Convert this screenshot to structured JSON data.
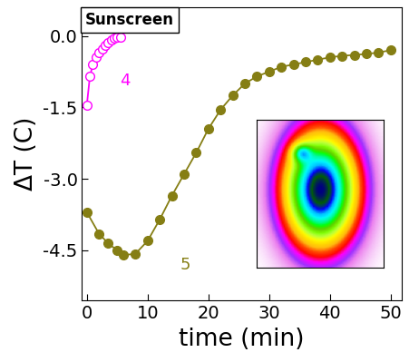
{
  "chart_data": {
    "type": "line",
    "title": "Sunscreen",
    "x_label": "time (min)",
    "y_label": "ΔT (C)",
    "xlim": [
      -0.8,
      51.8
    ],
    "ylim": [
      -5.55,
      0.6
    ],
    "xticks": [
      0,
      10,
      20,
      30,
      40,
      50
    ],
    "yticks": [
      0.0,
      -1.5,
      -3.0,
      -4.5
    ],
    "grid": false,
    "series": [
      {
        "name": "4",
        "color": "#ff00ff",
        "marker": "open_circle",
        "line_style": "solid",
        "x": [
          0,
          0.5,
          1,
          1.5,
          2,
          2.5,
          3,
          3.5,
          4,
          4.5,
          5,
          5.5
        ],
        "values": [
          -1.45,
          -0.85,
          -0.6,
          -0.45,
          -0.35,
          -0.28,
          -0.2,
          -0.14,
          -0.08,
          -0.05,
          -0.03,
          -0.02
        ]
      },
      {
        "name": "5",
        "color": "#857e14",
        "marker": "circle",
        "line_style": "solid",
        "x": [
          0,
          2,
          3.5,
          5,
          6,
          8,
          10,
          12,
          14,
          16,
          18,
          20,
          22,
          24,
          26,
          28,
          30,
          32,
          34,
          36,
          38,
          40,
          42,
          44,
          46,
          48,
          50
        ],
        "values": [
          -3.7,
          -4.15,
          -4.35,
          -4.5,
          -4.6,
          -4.57,
          -4.3,
          -3.85,
          -3.35,
          -2.9,
          -2.45,
          -1.95,
          -1.55,
          -1.25,
          -1.0,
          -0.85,
          -0.75,
          -0.65,
          -0.6,
          -0.55,
          -0.5,
          -0.45,
          -0.42,
          -0.4,
          -0.38,
          -0.35,
          -0.3
        ]
      }
    ]
  }
}
